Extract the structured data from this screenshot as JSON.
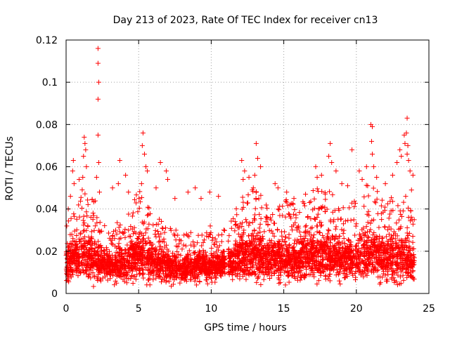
{
  "chart_data": {
    "type": "scatter",
    "title": "Day 213 of 2023, Rate Of TEC Index for receiver cn13",
    "xlabel": "GPS time / hours",
    "ylabel": "ROTI / TECUs",
    "xlim": [
      0,
      25
    ],
    "ylim": [
      0,
      0.12
    ],
    "x_ticks": [
      0,
      5,
      10,
      15,
      20,
      25
    ],
    "x_tick_labels": [
      "0",
      "5",
      "10",
      "15",
      "20",
      "25"
    ],
    "y_ticks": [
      0,
      0.02,
      0.04,
      0.06,
      0.08,
      0.1,
      0.12
    ],
    "y_tick_labels": [
      "0",
      "0.02",
      "0.04",
      "0.06",
      "0.08",
      "0.1",
      "0.12"
    ],
    "grid": true,
    "marker": "+",
    "series": [
      {
        "name": "ROTI",
        "color": "#ff0000",
        "points": [
          [
            2.2,
            0.116
          ],
          [
            2.2,
            0.109
          ],
          [
            2.25,
            0.1
          ],
          [
            2.2,
            0.092
          ],
          [
            2.2,
            0.075
          ],
          [
            2.25,
            0.062
          ],
          [
            2.1,
            0.055
          ],
          [
            2.3,
            0.048
          ],
          [
            1.25,
            0.074
          ],
          [
            1.3,
            0.071
          ],
          [
            1.35,
            0.068
          ],
          [
            1.2,
            0.065
          ],
          [
            1.4,
            0.06
          ],
          [
            1.15,
            0.055
          ],
          [
            0.5,
            0.063
          ],
          [
            0.45,
            0.058
          ],
          [
            0.55,
            0.052
          ],
          [
            0.9,
            0.054
          ],
          [
            0.3,
            0.046
          ],
          [
            0.15,
            0.04
          ],
          [
            3.7,
            0.063
          ],
          [
            3.6,
            0.052
          ],
          [
            4.1,
            0.056
          ],
          [
            4.3,
            0.048
          ],
          [
            3.2,
            0.05
          ],
          [
            5.3,
            0.076
          ],
          [
            5.25,
            0.07
          ],
          [
            5.4,
            0.066
          ],
          [
            5.5,
            0.06
          ],
          [
            5.6,
            0.058
          ],
          [
            5.2,
            0.052
          ],
          [
            6.5,
            0.062
          ],
          [
            6.9,
            0.058
          ],
          [
            7.0,
            0.054
          ],
          [
            6.2,
            0.05
          ],
          [
            7.5,
            0.045
          ],
          [
            8.4,
            0.048
          ],
          [
            8.9,
            0.05
          ],
          [
            9.3,
            0.045
          ],
          [
            9.9,
            0.048
          ],
          [
            10.5,
            0.046
          ],
          [
            12.1,
            0.063
          ],
          [
            12.3,
            0.058
          ],
          [
            12.2,
            0.054
          ],
          [
            12.6,
            0.055
          ],
          [
            12.9,
            0.05
          ],
          [
            13.1,
            0.071
          ],
          [
            13.2,
            0.064
          ],
          [
            13.4,
            0.06
          ],
          [
            13.0,
            0.056
          ],
          [
            14.4,
            0.052
          ],
          [
            14.6,
            0.05
          ],
          [
            15.2,
            0.048
          ],
          [
            15.7,
            0.045
          ],
          [
            16.5,
            0.047
          ],
          [
            17.2,
            0.06
          ],
          [
            17.3,
            0.055
          ],
          [
            17.6,
            0.056
          ],
          [
            18.2,
            0.071
          ],
          [
            18.1,
            0.065
          ],
          [
            18.3,
            0.062
          ],
          [
            18.6,
            0.058
          ],
          [
            19.0,
            0.052
          ],
          [
            19.4,
            0.051
          ],
          [
            19.7,
            0.068
          ],
          [
            20.2,
            0.058
          ],
          [
            20.4,
            0.054
          ],
          [
            20.7,
            0.06
          ],
          [
            21.0,
            0.08
          ],
          [
            21.1,
            0.079
          ],
          [
            21.05,
            0.072
          ],
          [
            21.1,
            0.066
          ],
          [
            21.2,
            0.06
          ],
          [
            21.4,
            0.055
          ],
          [
            22.0,
            0.052
          ],
          [
            22.5,
            0.056
          ],
          [
            22.8,
            0.062
          ],
          [
            23.0,
            0.068
          ],
          [
            23.1,
            0.065
          ],
          [
            23.3,
            0.075
          ],
          [
            23.35,
            0.071
          ],
          [
            23.45,
            0.076
          ],
          [
            23.5,
            0.083
          ],
          [
            23.55,
            0.07
          ],
          [
            23.5,
            0.066
          ],
          [
            23.6,
            0.063
          ],
          [
            23.7,
            0.058
          ],
          [
            23.9,
            0.056
          ],
          [
            23.8,
            0.049
          ],
          [
            23.4,
            0.046
          ]
        ]
      }
    ],
    "band": {
      "baseline_x": [
        0,
        1,
        2,
        3,
        4,
        5,
        6,
        7,
        8,
        9,
        10,
        11,
        12,
        13,
        14,
        15,
        16,
        17,
        18,
        19,
        20,
        21,
        22,
        23,
        24
      ],
      "baseline_y": [
        0.014,
        0.018,
        0.016,
        0.013,
        0.014,
        0.018,
        0.015,
        0.012,
        0.012,
        0.013,
        0.013,
        0.014,
        0.016,
        0.018,
        0.016,
        0.017,
        0.016,
        0.018,
        0.018,
        0.016,
        0.017,
        0.019,
        0.016,
        0.017,
        0.014
      ],
      "spread": [
        0.012,
        0.02,
        0.018,
        0.012,
        0.013,
        0.02,
        0.016,
        0.012,
        0.011,
        0.012,
        0.012,
        0.01,
        0.018,
        0.02,
        0.016,
        0.018,
        0.016,
        0.02,
        0.02,
        0.016,
        0.018,
        0.022,
        0.017,
        0.02,
        0.014
      ]
    }
  }
}
